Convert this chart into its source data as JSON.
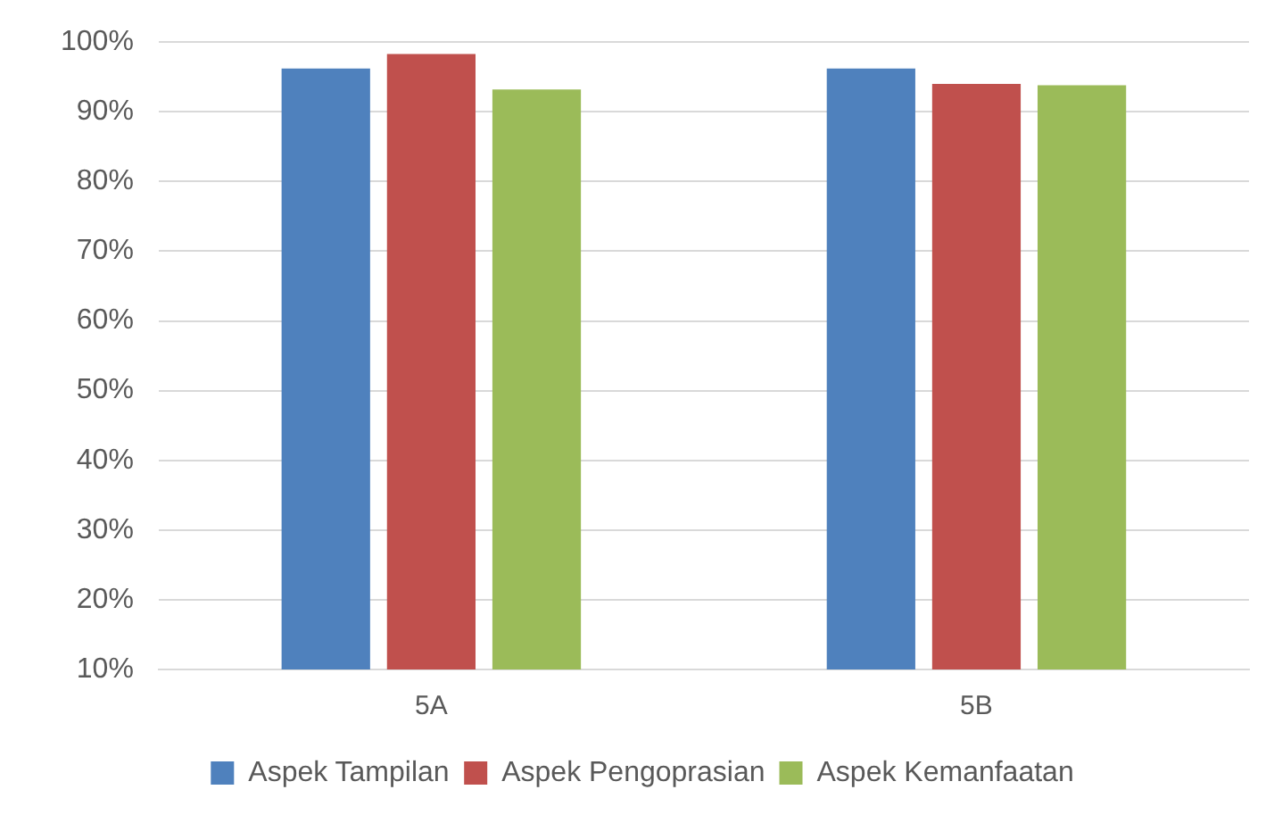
{
  "chart_data": {
    "type": "bar",
    "categories": [
      "5A",
      "5B"
    ],
    "series": [
      {
        "name": "Aspek Tampilan",
        "color": "#4f81bd",
        "values": [
          96.2,
          96.2
        ]
      },
      {
        "name": "Aspek Pengoprasian",
        "color": "#c0504d",
        "values": [
          98.3,
          94.0
        ]
      },
      {
        "name": "Aspek Kemanfaatan",
        "color": "#9bbb59",
        "values": [
          93.2,
          93.8
        ]
      }
    ],
    "ylim": [
      10,
      100
    ],
    "yticks": [
      {
        "value": 10,
        "label": "10%"
      },
      {
        "value": 20,
        "label": "20%"
      },
      {
        "value": 30,
        "label": "30%"
      },
      {
        "value": 40,
        "label": "40%"
      },
      {
        "value": 50,
        "label": "50%"
      },
      {
        "value": 60,
        "label": "60%"
      },
      {
        "value": 70,
        "label": "70%"
      },
      {
        "value": 80,
        "label": "80%"
      },
      {
        "value": 90,
        "label": "90%"
      },
      {
        "value": 100,
        "label": "100%"
      }
    ],
    "grid": "y",
    "legend": "bottom"
  }
}
